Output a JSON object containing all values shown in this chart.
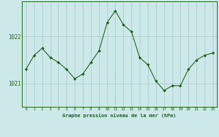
{
  "x": [
    0,
    1,
    2,
    3,
    4,
    5,
    6,
    7,
    8,
    9,
    10,
    11,
    12,
    13,
    14,
    15,
    16,
    17,
    18,
    19,
    20,
    21,
    22,
    23
  ],
  "y": [
    1021.3,
    1021.6,
    1021.75,
    1021.55,
    1021.45,
    1021.3,
    1021.1,
    1021.2,
    1021.45,
    1021.7,
    1022.3,
    1022.55,
    1022.25,
    1022.1,
    1021.55,
    1021.4,
    1021.05,
    1020.85,
    1020.95,
    1020.95,
    1021.3,
    1021.5,
    1021.6,
    1021.65
  ],
  "line_color": "#1a5c1a",
  "marker_color": "#1a5c1a",
  "bg_color": "#cce8e8",
  "grid_color": "#aacccc",
  "axis_label_color": "#1a5c1a",
  "title": "Graphe pression niveau de la mer (hPa)",
  "yticks": [
    1021,
    1022
  ],
  "ylim": [
    1020.5,
    1022.75
  ],
  "xlim": [
    -0.5,
    23.5
  ],
  "figsize": [
    3.2,
    2.0
  ],
  "dpi": 100
}
